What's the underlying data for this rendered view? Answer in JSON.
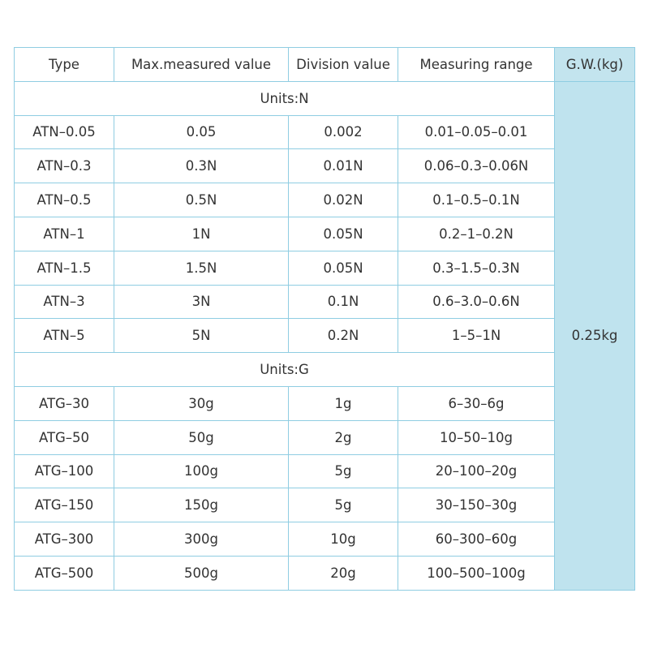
{
  "table": {
    "header": [
      "Type",
      "Max.measured value",
      "Division value",
      "Measuring range",
      "G.W.(kg)"
    ],
    "sections": [
      {
        "label": "Units:N",
        "rows": [
          [
            "ATN–0.05",
            "0.05",
            "0.002",
            "0.01–0.05–0.01"
          ],
          [
            "ATN–0.3",
            "0.3N",
            "0.01N",
            "0.06–0.3–0.06N"
          ],
          [
            "ATN–0.5",
            "0.5N",
            "0.02N",
            "0.1–0.5–0.1N"
          ],
          [
            "ATN–1",
            "1N",
            "0.05N",
            "0.2–1–0.2N"
          ],
          [
            "ATN–1.5",
            "1.5N",
            "0.05N",
            "0.3–1.5–0.3N"
          ],
          [
            "ATN–3",
            "3N",
            "0.1N",
            "0.6–3.0–0.6N"
          ],
          [
            "ATN–5",
            "5N",
            "0.2N",
            "1–5–1N"
          ]
        ]
      },
      {
        "label": "Units:G",
        "rows": [
          [
            "ATG–30",
            "30g",
            "1g",
            "6–30–6g"
          ],
          [
            "ATG–50",
            "50g",
            "2g",
            "10–50–10g"
          ],
          [
            "ATG–100",
            "100g",
            "5g",
            "20–100–20g"
          ],
          [
            "ATG–150",
            "150g",
            "5g",
            "30–150–30g"
          ],
          [
            "ATG–300",
            "300g",
            "10g",
            "60–300–60g"
          ],
          [
            "ATG–500",
            "500g",
            "20g",
            "100–500–100g"
          ]
        ]
      }
    ],
    "gw": "0.25kg"
  }
}
